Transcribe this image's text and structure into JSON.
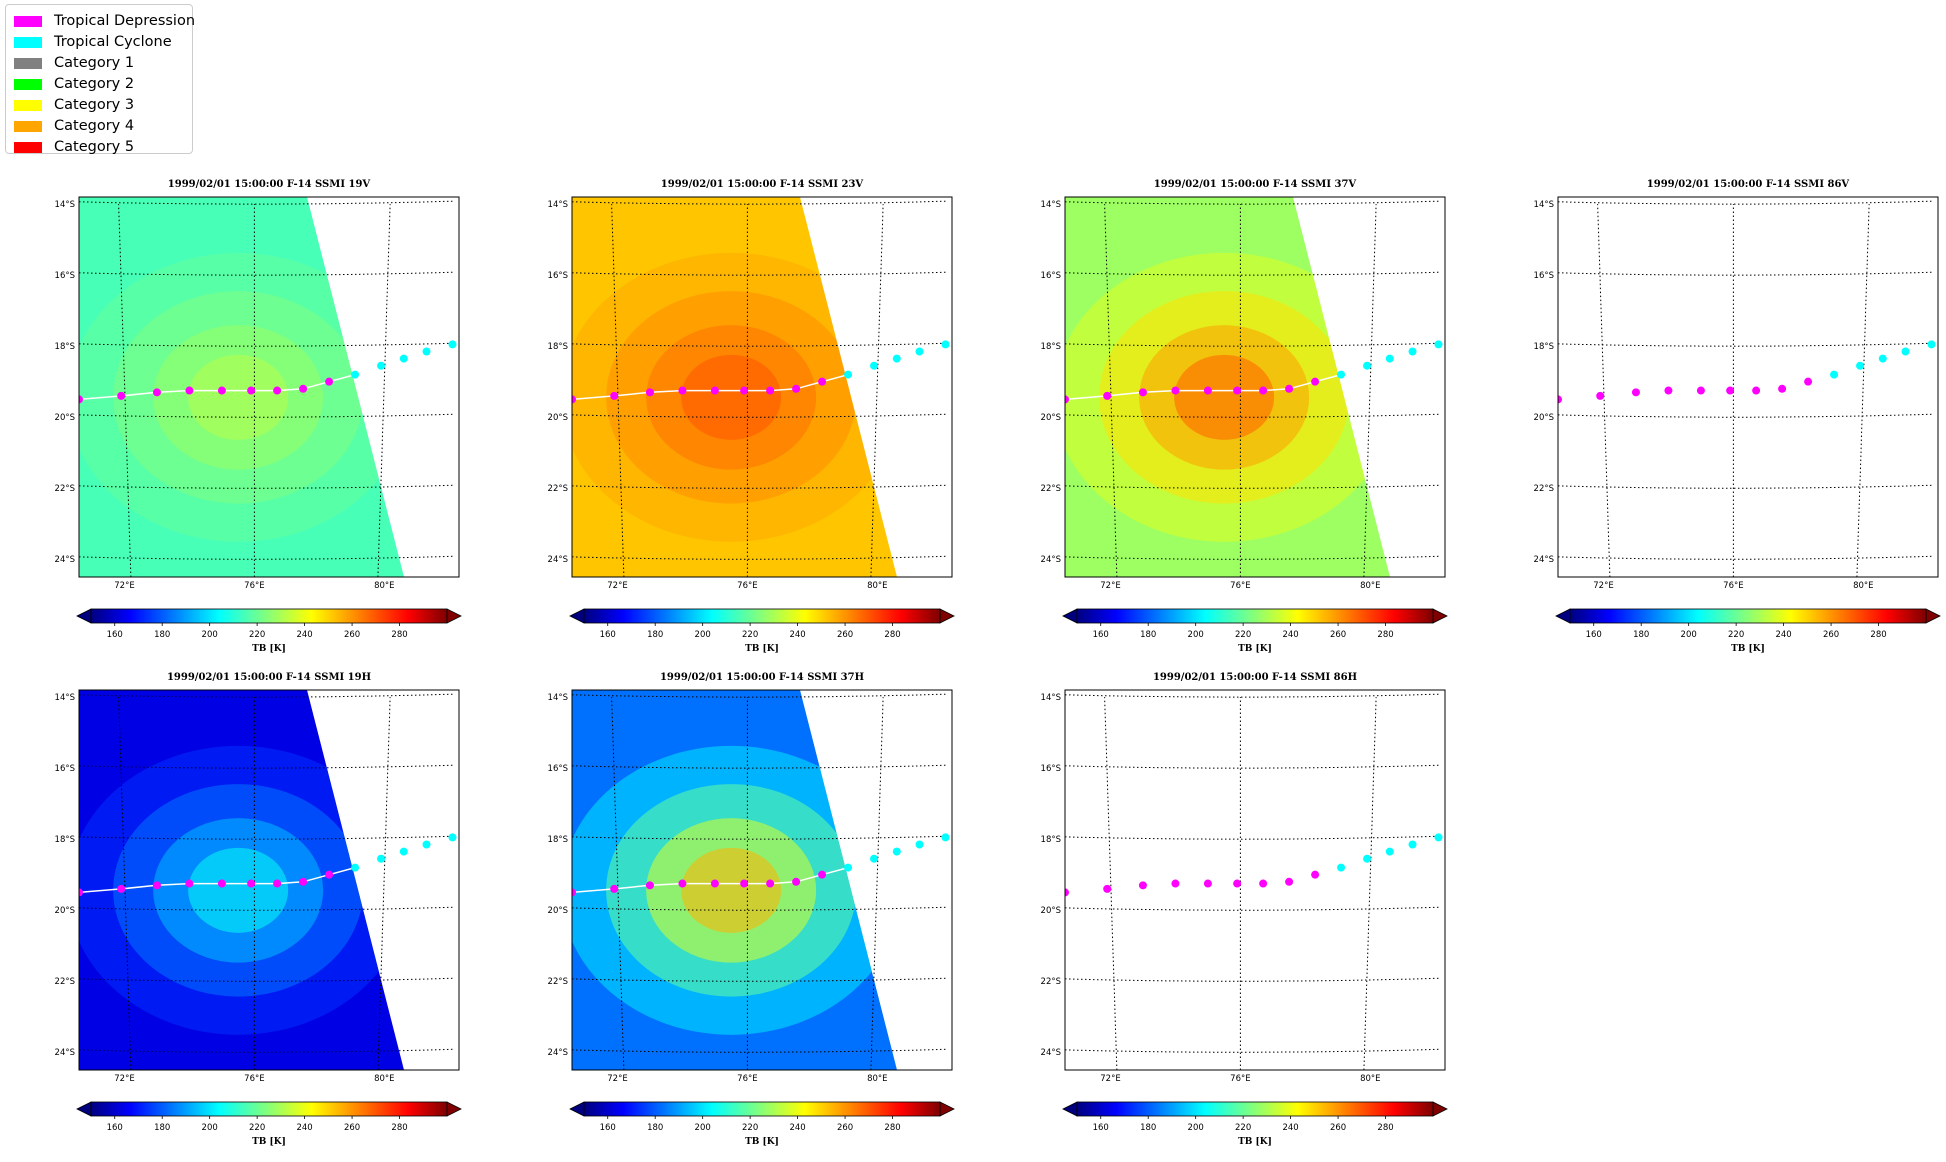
{
  "legend": [
    {
      "label": "Tropical Depression",
      "color": "#ff00ff"
    },
    {
      "label": "Tropical Cyclone",
      "color": "#00ffff"
    },
    {
      "label": "Category 1",
      "color": "#808080"
    },
    {
      "label": "Category 2",
      "color": "#00ff00"
    },
    {
      "label": "Category 3",
      "color": "#ffff00"
    },
    {
      "label": "Category 4",
      "color": "#ffa500"
    },
    {
      "label": "Category 5",
      "color": "#ff0000"
    }
  ],
  "colorbar": {
    "label": "TB [K]",
    "ticks": [
      "160",
      "180",
      "200",
      "220",
      "240",
      "260",
      "280"
    ],
    "tick_values": [
      160,
      180,
      200,
      220,
      240,
      260,
      280
    ],
    "range": [
      150,
      300
    ],
    "colormap": "jet",
    "extend": "both"
  },
  "map": {
    "lat_labels": [
      "14°S",
      "16°S",
      "18°S",
      "20°S",
      "22°S",
      "24°S"
    ],
    "lat_values": [
      -14,
      -16,
      -18,
      -20,
      -22,
      -24
    ],
    "lon_labels": [
      "72°E",
      "76°E",
      "80°E"
    ],
    "lon_values": [
      72,
      76,
      80
    ],
    "lat_range": [
      -24.5,
      -13.8
    ],
    "lon_range": [
      70.6,
      82.3
    ]
  },
  "chart_data": [
    {
      "type": "heatmap",
      "title": "1999/02/01 15:00:00  F-14 SSMI 19V",
      "channel": "19V",
      "has_data": true,
      "background_tb": 215,
      "storm_center_tb": 232,
      "swath": "partial"
    },
    {
      "type": "heatmap",
      "title": "1999/02/01 15:00:00  F-14 SSMI 23V",
      "channel": "23V",
      "has_data": true,
      "background_tb": 252,
      "storm_center_tb": 270,
      "swath": "partial"
    },
    {
      "type": "heatmap",
      "title": "1999/02/01 15:00:00  F-14 SSMI 37V",
      "channel": "37V",
      "has_data": true,
      "background_tb": 228,
      "storm_center_tb": 268,
      "swath": "partial"
    },
    {
      "type": "heatmap",
      "title": "1999/02/01 15:00:00  F-14 SSMI 86V",
      "channel": "86V",
      "has_data": false
    },
    {
      "type": "heatmap",
      "title": "1999/02/01 15:00:00  F-14 SSMI 19H",
      "channel": "19H",
      "has_data": true,
      "background_tb": 163,
      "storm_center_tb": 205,
      "swath": "partial"
    },
    {
      "type": "heatmap",
      "title": "1999/02/01 15:00:00  F-14 SSMI 37H",
      "channel": "37H",
      "has_data": true,
      "background_tb": 183,
      "storm_center_tb": 255,
      "swath": "partial"
    },
    {
      "type": "heatmap",
      "title": "1999/02/01 15:00:00  F-14 SSMI 86H",
      "channel": "86H",
      "has_data": false
    }
  ],
  "track": [
    {
      "lon": 70.6,
      "lat": -19.5,
      "category": "Tropical Depression"
    },
    {
      "lon": 71.9,
      "lat": -19.4,
      "category": "Tropical Depression"
    },
    {
      "lon": 73.0,
      "lat": -19.3,
      "category": "Tropical Depression"
    },
    {
      "lon": 74.0,
      "lat": -19.25,
      "category": "Tropical Depression"
    },
    {
      "lon": 75.0,
      "lat": -19.25,
      "category": "Tropical Depression"
    },
    {
      "lon": 75.9,
      "lat": -19.25,
      "category": "Tropical Depression"
    },
    {
      "lon": 76.7,
      "lat": -19.25,
      "category": "Tropical Depression"
    },
    {
      "lon": 77.5,
      "lat": -19.2,
      "category": "Tropical Depression"
    },
    {
      "lon": 78.3,
      "lat": -19.0,
      "category": "Tropical Depression"
    },
    {
      "lon": 79.1,
      "lat": -18.8,
      "category": "Tropical Cyclone"
    },
    {
      "lon": 79.9,
      "lat": -18.55,
      "category": "Tropical Cyclone"
    },
    {
      "lon": 80.6,
      "lat": -18.35,
      "category": "Tropical Cyclone"
    },
    {
      "lon": 81.3,
      "lat": -18.15,
      "category": "Tropical Cyclone"
    },
    {
      "lon": 82.1,
      "lat": -17.95,
      "category": "Tropical Cyclone"
    }
  ]
}
